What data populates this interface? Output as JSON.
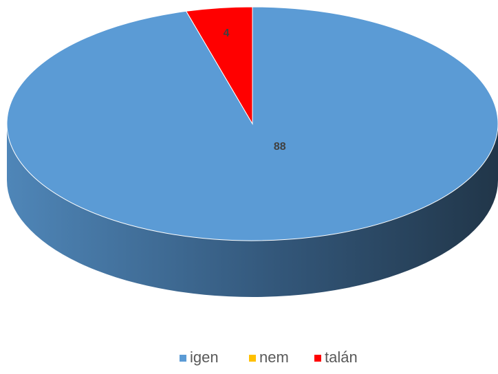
{
  "chart_data": {
    "type": "pie",
    "three_d": true,
    "categories": [
      "igen",
      "nem",
      "talán"
    ],
    "values": [
      88,
      0,
      4
    ],
    "colors": [
      "#5b9bd5",
      "#ffc000",
      "#ff0000"
    ],
    "legend": "bottom"
  }
}
